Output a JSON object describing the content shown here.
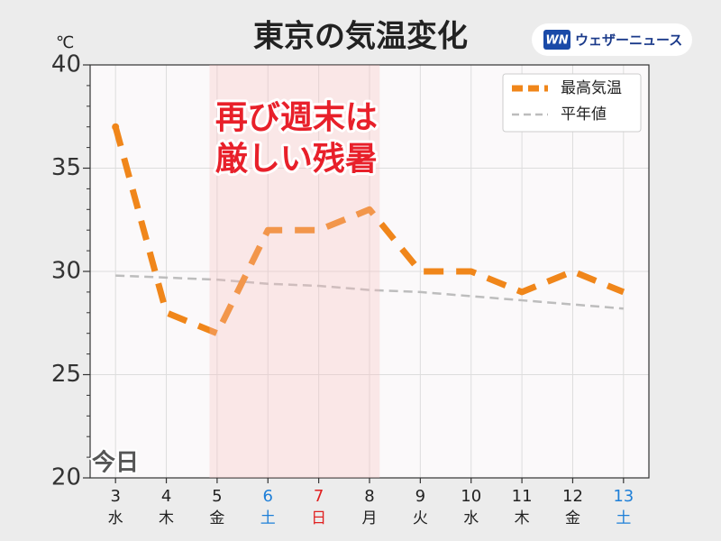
{
  "chart_data": {
    "type": "line",
    "title": "東京の気温変化",
    "y_unit": "℃",
    "brand": {
      "mark": "WN",
      "name": "ウェザーニュース"
    },
    "annotation": [
      "再び週末は",
      "厳しい残暑"
    ],
    "today_label": "今日",
    "categories": [
      "3",
      "4",
      "5",
      "6",
      "7",
      "8",
      "9",
      "10",
      "11",
      "12",
      "13"
    ],
    "weekdays": [
      "水",
      "木",
      "金",
      "土",
      "日",
      "月",
      "火",
      "水",
      "木",
      "金",
      "土"
    ],
    "category_colors": [
      "#222222",
      "#222222",
      "#222222",
      "#1e7fd8",
      "#e02020",
      "#222222",
      "#222222",
      "#222222",
      "#222222",
      "#222222",
      "#1e7fd8"
    ],
    "highlight_categories": [
      "6",
      "7"
    ],
    "series": [
      {
        "name": "最高気温",
        "color": "#f0861a",
        "values": [
          37,
          28,
          27,
          32,
          32,
          33,
          30,
          30,
          29,
          30,
          29
        ]
      },
      {
        "name": "平年値",
        "color": "#bdbdbd",
        "values": [
          29.8,
          29.7,
          29.6,
          29.4,
          29.3,
          29.1,
          29.0,
          28.8,
          28.6,
          28.4,
          28.2
        ]
      }
    ],
    "ylim": [
      20,
      40
    ],
    "yticks": [
      20,
      25,
      30,
      35,
      40
    ],
    "yminorticks": [
      21,
      22,
      23,
      24,
      26,
      27,
      28,
      29,
      31,
      32,
      33,
      34,
      36,
      37,
      38,
      39
    ],
    "grid": true,
    "legend": "upper right"
  }
}
